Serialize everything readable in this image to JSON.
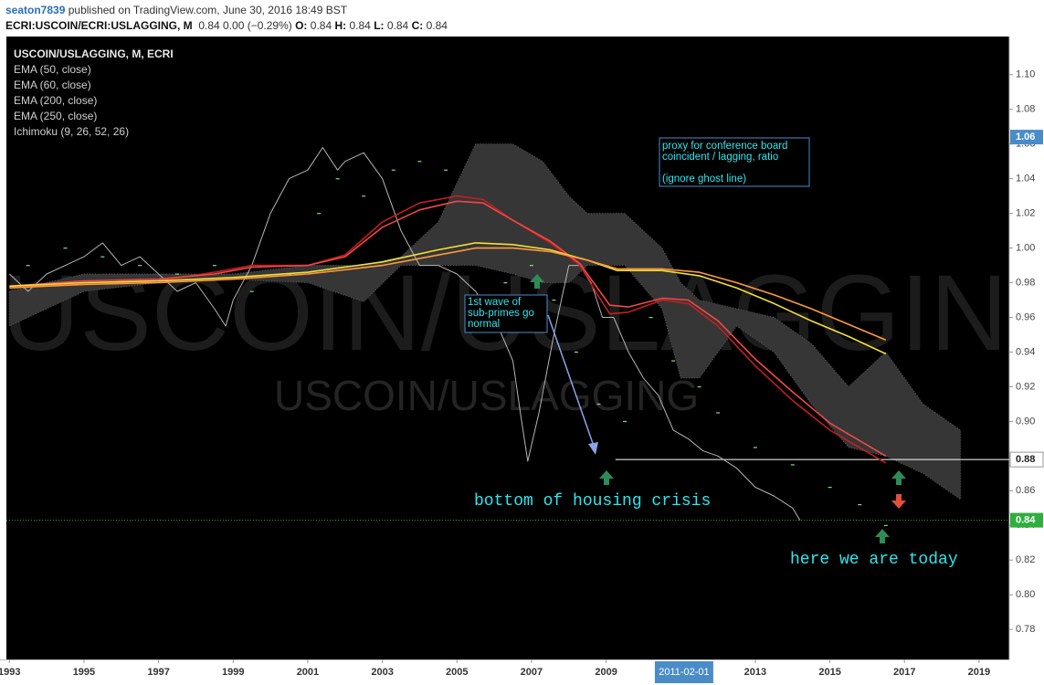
{
  "header": {
    "author": "seaton7839",
    "published": "published on TradingView.com, June 30, 2016 18:49 BST",
    "symbol": "ECRI:USCOIN/ECRI:USLAGGING, M",
    "quote": "0.84 0.00 (−0.29%)",
    "ohlc": [
      {
        "label": "O:",
        "value": "0.84"
      },
      {
        "label": "H:",
        "value": "0.84"
      },
      {
        "label": "L:",
        "value": "0.84"
      },
      {
        "label": "C:",
        "value": "0.84"
      }
    ]
  },
  "chart_data": {
    "type": "line",
    "watermark": "USCOIN/USLAGGING, M",
    "watermark_sub": "USCOIN/USLAGGING",
    "xlim": [
      1992.92,
      2019.81
    ],
    "ylim": [
      0.7627,
      1.122
    ],
    "xticks": [
      1993,
      1995,
      1997,
      1999,
      2001,
      2003,
      2005,
      2007,
      2009,
      2013,
      2015,
      2017,
      2019
    ],
    "crosshair": {
      "x": 2011.09,
      "label": "2011-02-01"
    },
    "yticks": [
      0.78,
      {
        "value": 0.8,
        "label": "0.80"
      },
      0.82,
      0.84,
      0.86,
      0.88,
      {
        "value": 0.9,
        "label": "0.90"
      },
      0.92,
      0.94,
      0.96,
      0.98,
      {
        "value": 1.0,
        "label": "1.00"
      },
      1.02,
      1.04,
      1.06,
      1.08,
      {
        "value": 1.1,
        "label": "1.10"
      }
    ],
    "levels": [
      {
        "value": 1.064,
        "label": "1.06",
        "color": "#4a8cc8",
        "text_color": "#ffffff"
      },
      {
        "value": 0.878,
        "label": "0.88",
        "color": "#ffffff",
        "text_color": "#222222",
        "line": "solid",
        "from": 2009.25
      },
      {
        "value": 0.843,
        "label": "0.84",
        "color": "#2fae3f",
        "text_color": "#ffffff",
        "line": "dotted"
      }
    ],
    "series": [
      {
        "name": "USCOIN/USLAGGING, M, ECRI",
        "color": "#b5b5b5",
        "x": [
          1993.0,
          1993.5,
          1994.0,
          1994.5,
          1995.0,
          1995.5,
          1996.0,
          1996.5,
          1997.0,
          1997.5,
          1998.0,
          1998.5,
          1998.8,
          1999.0,
          1999.5,
          2000.0,
          2000.5,
          2001.0,
          2001.4,
          2001.8,
          2002.0,
          2002.5,
          2003.0,
          2003.5,
          2004.0,
          2004.5,
          2005.0,
          2005.5,
          2006.0,
          2006.5,
          2006.7,
          2006.9,
          2007.2,
          2007.6,
          2008.0,
          2008.3,
          2008.6,
          2008.9,
          2009.2,
          2009.6,
          2010.0,
          2010.4,
          2010.8,
          2011.2,
          2011.6,
          2012.0,
          2012.5,
          2013.0,
          2013.5,
          2014.0,
          2014.2
        ],
        "values": [
          0.985,
          0.975,
          0.985,
          0.99,
          0.995,
          1.003,
          0.99,
          0.995,
          0.985,
          0.975,
          0.98,
          0.965,
          0.955,
          0.97,
          0.99,
          1.02,
          1.04,
          1.045,
          1.058,
          1.045,
          1.05,
          1.055,
          1.04,
          1.01,
          0.99,
          0.99,
          0.985,
          0.975,
          0.96,
          0.935,
          0.905,
          0.877,
          0.905,
          0.95,
          0.99,
          0.99,
          0.98,
          0.96,
          0.96,
          0.94,
          0.925,
          0.915,
          0.895,
          0.89,
          0.883,
          0.88,
          0.873,
          0.862,
          0.857,
          0.85,
          0.843
        ]
      },
      {
        "name": "EMA (50, close)",
        "color": "#c41f1f",
        "x": [
          1993,
          1995,
          1997,
          1998.5,
          1999.5,
          2001,
          2002,
          2003,
          2004,
          2005,
          2005.7,
          2006.5,
          2007.5,
          2008.3,
          2008.8,
          2009.1,
          2009.6,
          2010.5,
          2011.2,
          2012,
          2013,
          2014,
          2015,
          2016.5
        ],
        "values": [
          0.977,
          0.98,
          0.981,
          0.986,
          0.99,
          0.99,
          0.996,
          1.015,
          1.026,
          1.03,
          1.028,
          1.016,
          1.003,
          0.99,
          0.972,
          0.962,
          0.963,
          0.97,
          0.968,
          0.955,
          0.932,
          0.912,
          0.895,
          0.876
        ]
      },
      {
        "name": "EMA (60, close)",
        "color": "#f04848",
        "x": [
          1993,
          1995,
          1997,
          1998.5,
          1999.5,
          2001,
          2002,
          2003,
          2004,
          2005,
          2005.7,
          2006.5,
          2007.5,
          2008.3,
          2008.8,
          2009.1,
          2009.6,
          2010.5,
          2011.2,
          2012,
          2013,
          2014,
          2015,
          2016.5
        ],
        "values": [
          0.978,
          0.981,
          0.982,
          0.985,
          0.989,
          0.99,
          0.995,
          1.012,
          1.022,
          1.027,
          1.026,
          1.016,
          1.004,
          0.991,
          0.976,
          0.967,
          0.966,
          0.971,
          0.97,
          0.958,
          0.936,
          0.917,
          0.899,
          0.88
        ]
      },
      {
        "name": "EMA (200, close)",
        "color": "#f4e03a",
        "x": [
          1993,
          1995,
          1997,
          1999,
          2001,
          2003,
          2004.5,
          2005.5,
          2006.5,
          2007.5,
          2008.5,
          2009.3,
          2010.5,
          2011.5,
          2012.5,
          2013.5,
          2014.5,
          2015.5,
          2016.5
        ],
        "values": [
          0.978,
          0.98,
          0.981,
          0.983,
          0.986,
          0.992,
          0.999,
          1.003,
          1.002,
          0.999,
          0.993,
          0.987,
          0.987,
          0.984,
          0.977,
          0.968,
          0.958,
          0.949,
          0.939
        ]
      },
      {
        "name": "EMA (250, close)",
        "color": "#ff9a3c",
        "x": [
          1993,
          1995,
          1997,
          1999,
          2001,
          2003,
          2004.5,
          2005.5,
          2006.5,
          2007.5,
          2008.5,
          2009.3,
          2010.5,
          2011.5,
          2012.5,
          2013.5,
          2014.5,
          2015.5,
          2016.5
        ],
        "values": [
          0.977,
          0.979,
          0.98,
          0.982,
          0.985,
          0.99,
          0.996,
          1.0,
          1.0,
          0.998,
          0.993,
          0.988,
          0.988,
          0.986,
          0.98,
          0.973,
          0.965,
          0.956,
          0.947
        ]
      }
    ],
    "cloud": {
      "name": "Ichimoku (9, 26, 52, 26)",
      "color": "#363636",
      "dot_color": "#7fe07f",
      "x": [
        1993,
        1995,
        1997,
        1999,
        2001,
        2002.5,
        2003.5,
        2004.5,
        2005.5,
        2006.5,
        2007.3,
        2008,
        2008.5,
        2009.5,
        2010.5,
        2011,
        2011.5,
        2012.5,
        2013.5,
        2014.5,
        2015.5,
        2016.5,
        2017.5,
        2018.5
      ],
      "upper": [
        0.975,
        0.985,
        0.985,
        0.985,
        0.99,
        0.99,
        0.995,
        1.015,
        1.06,
        1.06,
        1.05,
        1.03,
        1.02,
        1.02,
        1.0,
        0.98,
        0.97,
        0.965,
        0.96,
        0.945,
        0.92,
        0.94,
        0.91,
        0.895
      ],
      "lower": [
        0.955,
        0.975,
        0.98,
        0.982,
        0.98,
        0.969,
        0.99,
        0.99,
        0.99,
        0.985,
        0.98,
        0.98,
        0.99,
        0.99,
        0.965,
        0.925,
        0.925,
        0.955,
        0.94,
        0.91,
        0.885,
        0.88,
        0.87,
        0.855
      ],
      "dots_x": [
        1993.5,
        1994.5,
        1995.5,
        1996.5,
        1997.5,
        1998.5,
        1999.5,
        2000.5,
        2001.3,
        2001.8,
        2002.5,
        2003.3,
        2004.0,
        2004.7,
        2005.5,
        2006.3,
        2007.0,
        2007.6,
        2008.2,
        2008.8,
        2009.5,
        2010.2,
        2010.8,
        2011.5,
        2012.0,
        2013.0,
        2014.0,
        2015.0,
        2015.8,
        2016.5
      ],
      "dots": [
        0.99,
        1.0,
        0.995,
        0.99,
        0.985,
        0.99,
        0.975,
        0.985,
        1.02,
        1.04,
        1.03,
        1.045,
        1.05,
        1.045,
        1.0,
        0.98,
        0.99,
        0.97,
        0.94,
        0.91,
        0.9,
        0.96,
        0.935,
        0.92,
        0.905,
        0.885,
        0.875,
        0.862,
        0.852,
        0.84
      ]
    }
  },
  "annotations": {
    "proxy": [
      "proxy for conference board",
      "coincident / lagging, ratio",
      "(ignore ghost line)"
    ],
    "wave": [
      "1st wave  of",
      "sub-primes go",
      "normal"
    ],
    "bottom": "bottom of housing crisis",
    "today": "here we are today"
  }
}
